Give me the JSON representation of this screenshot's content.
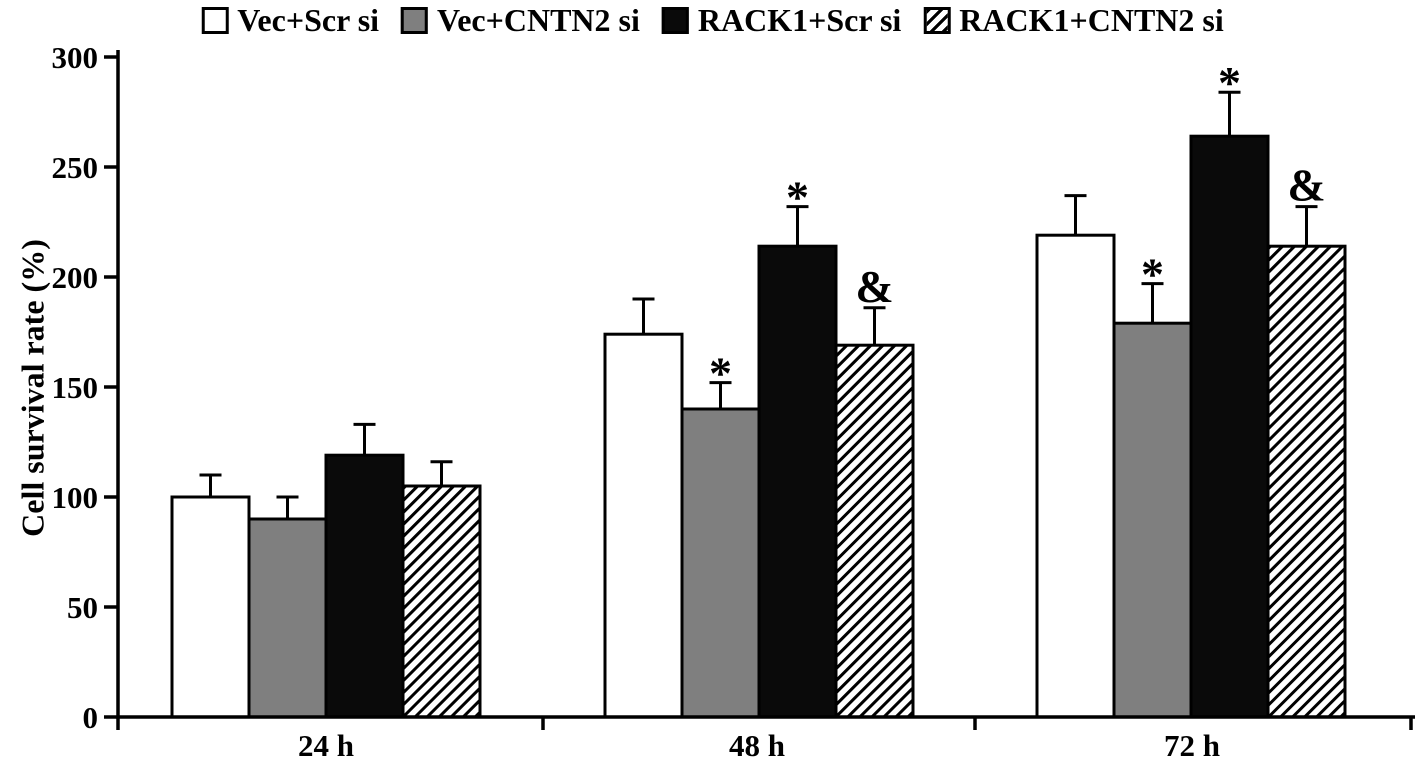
{
  "figure": {
    "ylabel": "Cell survival rate (%)"
  },
  "chart_data": {
    "type": "bar",
    "title": "",
    "xlabel": "",
    "ylabel": "Cell survival rate (%)",
    "ylim": [
      0,
      300
    ],
    "yticks": [
      0,
      50,
      100,
      150,
      200,
      250,
      300
    ],
    "categories": [
      "24 h",
      "48 h",
      "72 h"
    ],
    "grid": false,
    "legend_position": "top",
    "error_bars": "upper",
    "series": [
      {
        "name": "Vec+Scr si",
        "style": "white",
        "values": [
          100,
          174,
          219
        ],
        "errors": [
          10,
          16,
          18
        ],
        "annotations": [
          "",
          "",
          ""
        ]
      },
      {
        "name": "Vec+CNTN2 si",
        "style": "gray",
        "values": [
          90,
          140,
          179
        ],
        "errors": [
          10,
          12,
          18
        ],
        "annotations": [
          "",
          "*",
          "*"
        ]
      },
      {
        "name": "RACK1+Scr si",
        "style": "black",
        "values": [
          119,
          214,
          264
        ],
        "errors": [
          14,
          18,
          20
        ],
        "annotations": [
          "",
          "*",
          "*"
        ]
      },
      {
        "name": "RACK1+CNTN2 si",
        "style": "hatch",
        "values": [
          105,
          169,
          214
        ],
        "errors": [
          11,
          17,
          18
        ],
        "annotations": [
          "",
          "&",
          "&"
        ]
      }
    ],
    "colors": {
      "white": "#ffffff",
      "gray": "#7f7f7f",
      "black": "#0a0a0a",
      "axis": "#000000"
    }
  }
}
